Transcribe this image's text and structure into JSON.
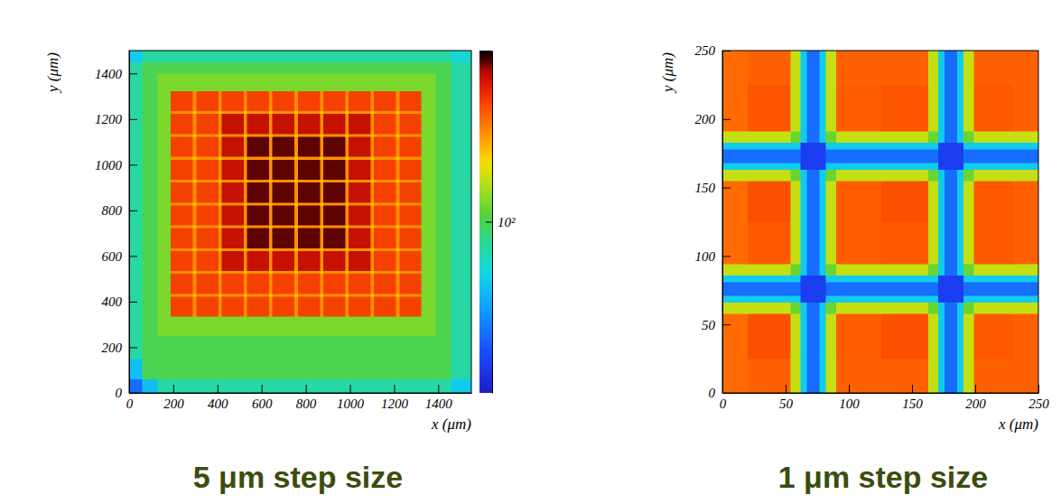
{
  "chart_data": [
    {
      "type": "heatmap",
      "title": "5 μm step size",
      "x_label": "x (μm)",
      "y_label": "y (μm)",
      "xlim": [
        0,
        1550
      ],
      "ylim": [
        0,
        1500
      ],
      "xticks": [
        0,
        200,
        400,
        600,
        800,
        1000,
        1200,
        1400
      ],
      "yticks": [
        0,
        200,
        400,
        600,
        800,
        1000,
        1200,
        1400
      ],
      "x_edges": [
        0,
        60,
        130,
        190,
        290,
        305,
        405,
        420,
        520,
        535,
        635,
        650,
        750,
        765,
        865,
        880,
        980,
        995,
        1095,
        1110,
        1210,
        1225,
        1325,
        1390,
        1460,
        1550
      ],
      "y_edges": [
        0,
        60,
        150,
        250,
        335,
        423,
        435,
        523,
        535,
        623,
        635,
        723,
        735,
        823,
        835,
        923,
        935,
        1023,
        1035,
        1123,
        1135,
        1223,
        1235,
        1323,
        1400,
        1450,
        1500
      ],
      "cells": [
        [
          22,
          40,
          70,
          70,
          70,
          70,
          70,
          70,
          70,
          70,
          70,
          70,
          70,
          70,
          70,
          70,
          70,
          70,
          70,
          70,
          70,
          70,
          70,
          70,
          45
        ],
        [
          40,
          100,
          100,
          100,
          100,
          100,
          100,
          100,
          100,
          100,
          100,
          100,
          100,
          100,
          100,
          100,
          100,
          100,
          100,
          100,
          100,
          100,
          100,
          100,
          70
        ],
        [
          70,
          100,
          100,
          100,
          100,
          100,
          100,
          100,
          100,
          100,
          100,
          100,
          100,
          100,
          100,
          100,
          100,
          100,
          100,
          100,
          100,
          100,
          100,
          100,
          70
        ],
        [
          70,
          100,
          130,
          130,
          130,
          130,
          130,
          130,
          130,
          130,
          130,
          130,
          130,
          130,
          130,
          130,
          130,
          130,
          130,
          130,
          130,
          130,
          130,
          100,
          70
        ],
        [
          70,
          100,
          130,
          500,
          330,
          500,
          330,
          500,
          330,
          500,
          330,
          500,
          330,
          500,
          330,
          500,
          330,
          500,
          330,
          500,
          330,
          500,
          130,
          100,
          70
        ],
        [
          70,
          100,
          130,
          330,
          250,
          330,
          250,
          330,
          250,
          330,
          250,
          330,
          250,
          330,
          250,
          330,
          250,
          330,
          250,
          330,
          250,
          330,
          130,
          100,
          70
        ],
        [
          70,
          100,
          130,
          500,
          330,
          500,
          330,
          500,
          330,
          500,
          330,
          500,
          330,
          500,
          330,
          500,
          330,
          500,
          330,
          500,
          330,
          500,
          130,
          100,
          70
        ],
        [
          70,
          100,
          130,
          330,
          250,
          330,
          250,
          330,
          250,
          330,
          250,
          330,
          250,
          330,
          250,
          330,
          250,
          330,
          250,
          330,
          250,
          330,
          130,
          100,
          70
        ],
        [
          70,
          100,
          130,
          500,
          330,
          500,
          330,
          700,
          330,
          700,
          330,
          700,
          330,
          700,
          330,
          700,
          330,
          700,
          330,
          500,
          330,
          500,
          130,
          100,
          70
        ],
        [
          70,
          100,
          130,
          330,
          250,
          330,
          250,
          330,
          250,
          330,
          250,
          330,
          250,
          330,
          250,
          330,
          250,
          330,
          250,
          330,
          250,
          330,
          130,
          100,
          70
        ],
        [
          70,
          100,
          130,
          500,
          330,
          500,
          330,
          700,
          330,
          850,
          330,
          850,
          330,
          850,
          330,
          850,
          330,
          700,
          330,
          500,
          330,
          500,
          130,
          100,
          70
        ],
        [
          70,
          100,
          130,
          330,
          250,
          330,
          250,
          330,
          250,
          330,
          250,
          330,
          250,
          330,
          250,
          330,
          250,
          330,
          250,
          330,
          250,
          330,
          130,
          100,
          70
        ],
        [
          70,
          100,
          130,
          500,
          330,
          500,
          330,
          700,
          330,
          850,
          330,
          850,
          330,
          850,
          330,
          850,
          330,
          700,
          330,
          500,
          330,
          500,
          130,
          100,
          70
        ],
        [
          70,
          100,
          130,
          330,
          250,
          330,
          250,
          330,
          250,
          330,
          250,
          330,
          250,
          330,
          250,
          330,
          250,
          330,
          250,
          330,
          250,
          330,
          130,
          100,
          70
        ],
        [
          70,
          100,
          130,
          500,
          330,
          500,
          330,
          700,
          330,
          850,
          330,
          850,
          330,
          850,
          330,
          850,
          330,
          700,
          330,
          500,
          330,
          500,
          130,
          100,
          70
        ],
        [
          70,
          100,
          130,
          330,
          250,
          330,
          250,
          330,
          250,
          330,
          250,
          330,
          250,
          330,
          250,
          330,
          250,
          330,
          250,
          330,
          250,
          330,
          130,
          100,
          70
        ],
        [
          70,
          100,
          130,
          500,
          330,
          500,
          330,
          700,
          330,
          850,
          330,
          850,
          330,
          850,
          330,
          850,
          330,
          700,
          330,
          500,
          330,
          500,
          130,
          100,
          70
        ],
        [
          70,
          100,
          130,
          330,
          250,
          330,
          250,
          330,
          250,
          330,
          250,
          330,
          250,
          330,
          250,
          330,
          250,
          330,
          250,
          330,
          250,
          330,
          130,
          100,
          70
        ],
        [
          70,
          100,
          130,
          500,
          330,
          500,
          330,
          700,
          330,
          850,
          330,
          850,
          330,
          850,
          330,
          850,
          330,
          700,
          330,
          500,
          330,
          500,
          130,
          100,
          70
        ],
        [
          70,
          100,
          130,
          330,
          250,
          330,
          250,
          330,
          250,
          330,
          250,
          330,
          250,
          330,
          250,
          330,
          250,
          330,
          250,
          330,
          250,
          330,
          130,
          100,
          70
        ],
        [
          70,
          100,
          130,
          500,
          330,
          500,
          330,
          700,
          330,
          700,
          330,
          700,
          330,
          700,
          330,
          700,
          330,
          700,
          330,
          500,
          330,
          500,
          130,
          100,
          70
        ],
        [
          70,
          100,
          130,
          330,
          250,
          330,
          250,
          330,
          250,
          330,
          250,
          330,
          250,
          330,
          250,
          330,
          250,
          330,
          250,
          330,
          250,
          330,
          130,
          100,
          70
        ],
        [
          70,
          100,
          130,
          500,
          330,
          500,
          330,
          500,
          330,
          500,
          330,
          500,
          330,
          500,
          330,
          500,
          330,
          500,
          330,
          500,
          330,
          500,
          130,
          100,
          70
        ],
        [
          70,
          100,
          130,
          130,
          130,
          130,
          130,
          130,
          130,
          130,
          130,
          130,
          130,
          130,
          130,
          130,
          130,
          130,
          130,
          130,
          130,
          130,
          130,
          100,
          70
        ],
        [
          70,
          100,
          100,
          100,
          100,
          100,
          100,
          100,
          100,
          100,
          100,
          100,
          100,
          100,
          100,
          100,
          100,
          100,
          100,
          100,
          100,
          100,
          100,
          100,
          70
        ],
        [
          45,
          70,
          70,
          70,
          70,
          70,
          70,
          70,
          70,
          70,
          70,
          70,
          70,
          70,
          70,
          70,
          70,
          70,
          70,
          70,
          70,
          70,
          70,
          70,
          55
        ]
      ],
      "zlim": [
        10,
        1000
      ],
      "zticks": [
        {
          "value": 100,
          "label": "10²"
        }
      ]
    },
    {
      "type": "heatmap",
      "title": "1 μm step size",
      "x_label": "x (μm)",
      "y_label": "y (μm)",
      "xlim": [
        0,
        250
      ],
      "ylim": [
        0,
        250
      ],
      "xticks": [
        0,
        50,
        100,
        150,
        200,
        250
      ],
      "yticks": [
        0,
        50,
        100,
        150,
        200,
        250
      ],
      "x_edges": [
        0,
        20,
        54,
        62,
        67,
        77,
        82,
        90,
        126,
        163,
        171,
        176,
        186,
        191,
        199,
        230,
        250
      ],
      "y_edges": [
        0,
        25,
        58,
        66,
        71,
        81,
        86,
        94,
        125,
        155,
        163,
        168,
        178,
        183,
        191,
        225,
        250
      ],
      "cells": [
        [
          400,
          420,
          180,
          45,
          22,
          45,
          180,
          420,
          420,
          180,
          45,
          22,
          45,
          180,
          420,
          420
        ],
        [
          400,
          460,
          180,
          45,
          22,
          45,
          180,
          430,
          460,
          180,
          45,
          22,
          45,
          180,
          440,
          420
        ],
        [
          180,
          180,
          120,
          45,
          22,
          45,
          120,
          180,
          180,
          120,
          45,
          22,
          45,
          120,
          180,
          180
        ],
        [
          45,
          45,
          45,
          15,
          15,
          15,
          45,
          45,
          45,
          45,
          15,
          15,
          15,
          45,
          45,
          45
        ],
        [
          22,
          22,
          22,
          15,
          15,
          15,
          22,
          22,
          22,
          22,
          15,
          15,
          15,
          22,
          22,
          22
        ],
        [
          45,
          45,
          45,
          15,
          15,
          15,
          45,
          45,
          45,
          45,
          15,
          15,
          15,
          45,
          45,
          45
        ],
        [
          180,
          180,
          120,
          45,
          22,
          45,
          120,
          180,
          180,
          120,
          45,
          22,
          45,
          120,
          180,
          180
        ],
        [
          400,
          440,
          180,
          45,
          22,
          45,
          180,
          430,
          440,
          180,
          45,
          22,
          45,
          180,
          440,
          420
        ],
        [
          400,
          460,
          180,
          45,
          22,
          45,
          180,
          430,
          460,
          180,
          45,
          22,
          45,
          180,
          440,
          420
        ],
        [
          180,
          180,
          120,
          45,
          22,
          45,
          120,
          180,
          180,
          120,
          45,
          22,
          45,
          120,
          180,
          180
        ],
        [
          45,
          45,
          45,
          15,
          15,
          15,
          45,
          45,
          45,
          45,
          15,
          15,
          15,
          45,
          45,
          45
        ],
        [
          22,
          22,
          22,
          15,
          15,
          15,
          22,
          22,
          22,
          22,
          15,
          15,
          15,
          22,
          22,
          22
        ],
        [
          45,
          45,
          45,
          15,
          15,
          15,
          45,
          45,
          45,
          45,
          15,
          15,
          15,
          45,
          45,
          45
        ],
        [
          180,
          180,
          120,
          45,
          22,
          45,
          120,
          180,
          180,
          120,
          45,
          22,
          45,
          120,
          180,
          180
        ],
        [
          400,
          450,
          180,
          45,
          22,
          45,
          180,
          430,
          450,
          180,
          45,
          22,
          45,
          180,
          440,
          420
        ],
        [
          400,
          420,
          180,
          45,
          22,
          45,
          180,
          420,
          420,
          180,
          45,
          22,
          45,
          180,
          420,
          420
        ]
      ],
      "zlim": [
        10,
        1000
      ]
    }
  ]
}
